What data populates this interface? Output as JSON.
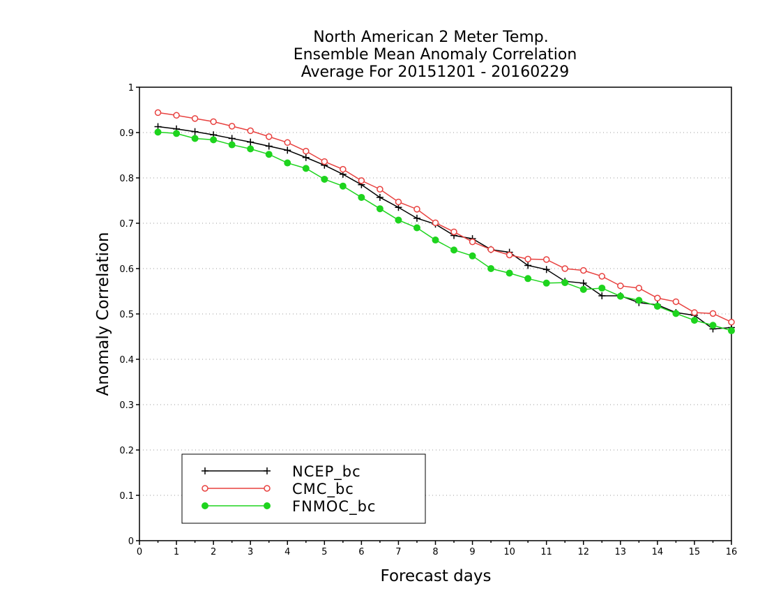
{
  "chart_data": {
    "type": "line",
    "title_lines": [
      "North American 2 Meter Temp.",
      "Ensemble Mean Anomaly Correlation",
      "Average For 20151201 - 20160229"
    ],
    "xlabel": "Forecast days",
    "ylabel": "Anomaly Correlation",
    "xlim": [
      0,
      16
    ],
    "ylim": [
      0,
      1
    ],
    "x_ticks": [
      0,
      1,
      2,
      3,
      4,
      5,
      6,
      7,
      8,
      9,
      10,
      11,
      12,
      13,
      14,
      15,
      16
    ],
    "y_ticks": [
      0,
      0.1,
      0.2,
      0.3,
      0.4,
      0.5,
      0.6,
      0.7,
      0.8,
      0.9,
      1
    ],
    "y_tick_labels": [
      "0",
      "0.1",
      "0.2",
      "0.3",
      "0.4",
      "0.5",
      "0.6",
      "0.7",
      "0.8",
      "0.9",
      "1"
    ],
    "grid": "horizontal-dotted",
    "legend_position": "bottom-left",
    "x": [
      0.5,
      1,
      1.5,
      2,
      2.5,
      3,
      3.5,
      4,
      4.5,
      5,
      5.5,
      6,
      6.5,
      7,
      7.5,
      8,
      8.5,
      9,
      9.5,
      10,
      10.5,
      11,
      11.5,
      12,
      12.5,
      13,
      13.5,
      14,
      14.5,
      15,
      15.5,
      16
    ],
    "series": [
      {
        "name": "NCEP_bc",
        "color": "#000000",
        "marker": "plus",
        "values": [
          0.913,
          0.908,
          0.902,
          0.895,
          0.887,
          0.879,
          0.87,
          0.861,
          0.845,
          0.828,
          0.808,
          0.785,
          0.757,
          0.735,
          0.711,
          0.698,
          0.673,
          0.666,
          0.642,
          0.636,
          0.607,
          0.598,
          0.572,
          0.568,
          0.54,
          0.54,
          0.525,
          0.52,
          0.503,
          0.497,
          0.467,
          0.47
        ]
      },
      {
        "name": "CMC_bc",
        "color": "#e8413f",
        "marker": "open-circle",
        "values": [
          0.944,
          0.938,
          0.931,
          0.924,
          0.914,
          0.904,
          0.891,
          0.878,
          0.859,
          0.836,
          0.819,
          0.794,
          0.775,
          0.747,
          0.731,
          0.701,
          0.681,
          0.659,
          0.642,
          0.63,
          0.621,
          0.62,
          0.6,
          0.596,
          0.583,
          0.562,
          0.557,
          0.535,
          0.527,
          0.503,
          0.501,
          0.482
        ]
      },
      {
        "name": "FNMOC_bc",
        "color": "#1ed41e",
        "marker": "filled-circle",
        "values": [
          0.901,
          0.898,
          0.887,
          0.884,
          0.873,
          0.864,
          0.852,
          0.833,
          0.821,
          0.797,
          0.782,
          0.757,
          0.732,
          0.707,
          0.69,
          0.663,
          0.641,
          0.628,
          0.6,
          0.59,
          0.578,
          0.568,
          0.569,
          0.554,
          0.557,
          0.539,
          0.53,
          0.517,
          0.501,
          0.486,
          0.475,
          0.463
        ]
      }
    ]
  }
}
